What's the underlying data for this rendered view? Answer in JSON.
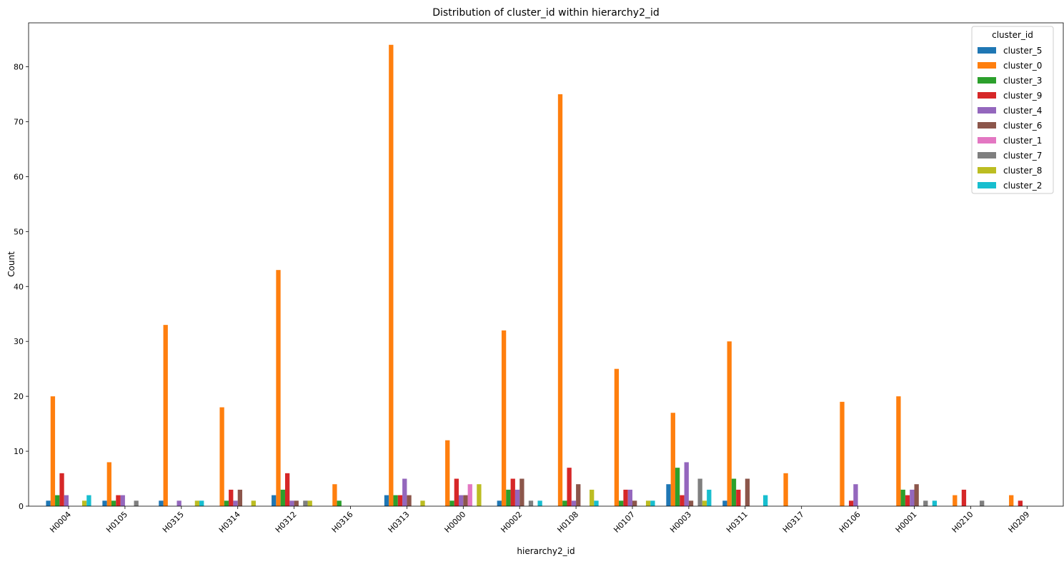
{
  "chart_data": {
    "type": "bar",
    "title": "Distribution of cluster_id within hierarchy2_id",
    "xlabel": "hierarchy2_id",
    "ylabel": "Count",
    "ylim": [
      0,
      88
    ],
    "yticks": [
      0,
      10,
      20,
      30,
      40,
      50,
      60,
      70,
      80
    ],
    "grid": false,
    "legend": {
      "title": "cluster_id",
      "placement": "top-right"
    },
    "categories": [
      "H0004",
      "H0105",
      "H0315",
      "H0314",
      "H0312",
      "H0316",
      "H0313",
      "H0000",
      "H0002",
      "H0108",
      "H0107",
      "H0003",
      "H0311",
      "H0317",
      "H0106",
      "H0001",
      "H0210",
      "H0209"
    ],
    "series": [
      {
        "name": "cluster_5",
        "color": "#1f77b4",
        "values": [
          1,
          1,
          1,
          0,
          2,
          0,
          2,
          0,
          1,
          0,
          0,
          4,
          1,
          0,
          0,
          0,
          0,
          0
        ]
      },
      {
        "name": "cluster_0",
        "color": "#ff7f0e",
        "values": [
          20,
          8,
          33,
          18,
          43,
          4,
          84,
          12,
          32,
          75,
          25,
          17,
          30,
          6,
          19,
          20,
          2,
          2
        ]
      },
      {
        "name": "cluster_3",
        "color": "#2ca02c",
        "values": [
          2,
          1,
          0,
          1,
          3,
          1,
          2,
          1,
          3,
          1,
          1,
          7,
          5,
          0,
          0,
          3,
          0,
          0
        ]
      },
      {
        "name": "cluster_9",
        "color": "#d62728",
        "values": [
          6,
          2,
          0,
          3,
          6,
          0,
          2,
          5,
          5,
          7,
          3,
          2,
          3,
          0,
          1,
          2,
          3,
          1
        ]
      },
      {
        "name": "cluster_4",
        "color": "#9467bd",
        "values": [
          2,
          2,
          1,
          1,
          1,
          0,
          5,
          2,
          3,
          1,
          3,
          8,
          0,
          0,
          4,
          3,
          0,
          0
        ]
      },
      {
        "name": "cluster_6",
        "color": "#8c564b",
        "values": [
          0,
          0,
          0,
          3,
          1,
          0,
          2,
          2,
          5,
          4,
          1,
          1,
          5,
          0,
          0,
          4,
          0,
          0
        ]
      },
      {
        "name": "cluster_1",
        "color": "#e377c2",
        "values": [
          0,
          0,
          0,
          0,
          0,
          0,
          0,
          4,
          0,
          0,
          0,
          0,
          0,
          0,
          0,
          0,
          0,
          0
        ]
      },
      {
        "name": "cluster_7",
        "color": "#7f7f7f",
        "values": [
          0,
          1,
          0,
          0,
          1,
          0,
          0,
          0,
          1,
          0,
          0,
          5,
          0,
          0,
          0,
          1,
          1,
          0
        ]
      },
      {
        "name": "cluster_8",
        "color": "#bcbd22",
        "values": [
          1,
          0,
          1,
          1,
          1,
          0,
          1,
          4,
          0,
          3,
          1,
          1,
          0,
          0,
          0,
          0,
          0,
          0
        ]
      },
      {
        "name": "cluster_2",
        "color": "#17becf",
        "values": [
          2,
          0,
          1,
          0,
          0,
          0,
          0,
          0,
          1,
          1,
          1,
          3,
          2,
          0,
          0,
          1,
          0,
          0
        ]
      }
    ]
  }
}
